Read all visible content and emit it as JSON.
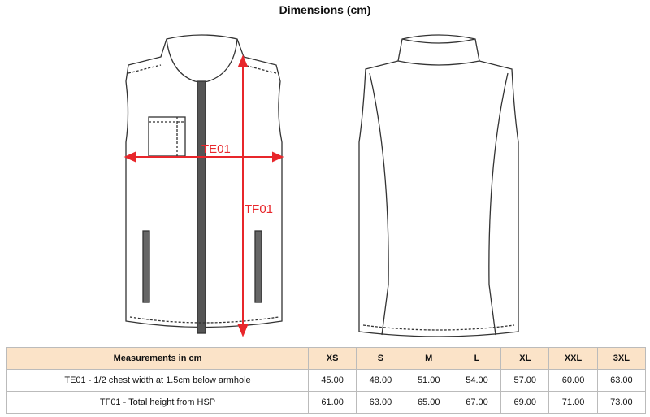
{
  "title": "Dimensions (cm)",
  "labels": {
    "chest": "TE01",
    "height": "TF01"
  },
  "colors": {
    "arrow": "#e8262b",
    "header_bg": "#fbe3c8"
  },
  "table": {
    "header": [
      "Measurements in cm",
      "XS",
      "S",
      "M",
      "L",
      "XL",
      "XXL",
      "3XL"
    ],
    "rows": [
      [
        "TE01 - 1/2 chest width at 1.5cm below armhole",
        "45.00",
        "48.00",
        "51.00",
        "54.00",
        "57.00",
        "60.00",
        "63.00"
      ],
      [
        "TF01 - Total height from HSP",
        "61.00",
        "63.00",
        "65.00",
        "67.00",
        "69.00",
        "71.00",
        "73.00"
      ]
    ]
  }
}
